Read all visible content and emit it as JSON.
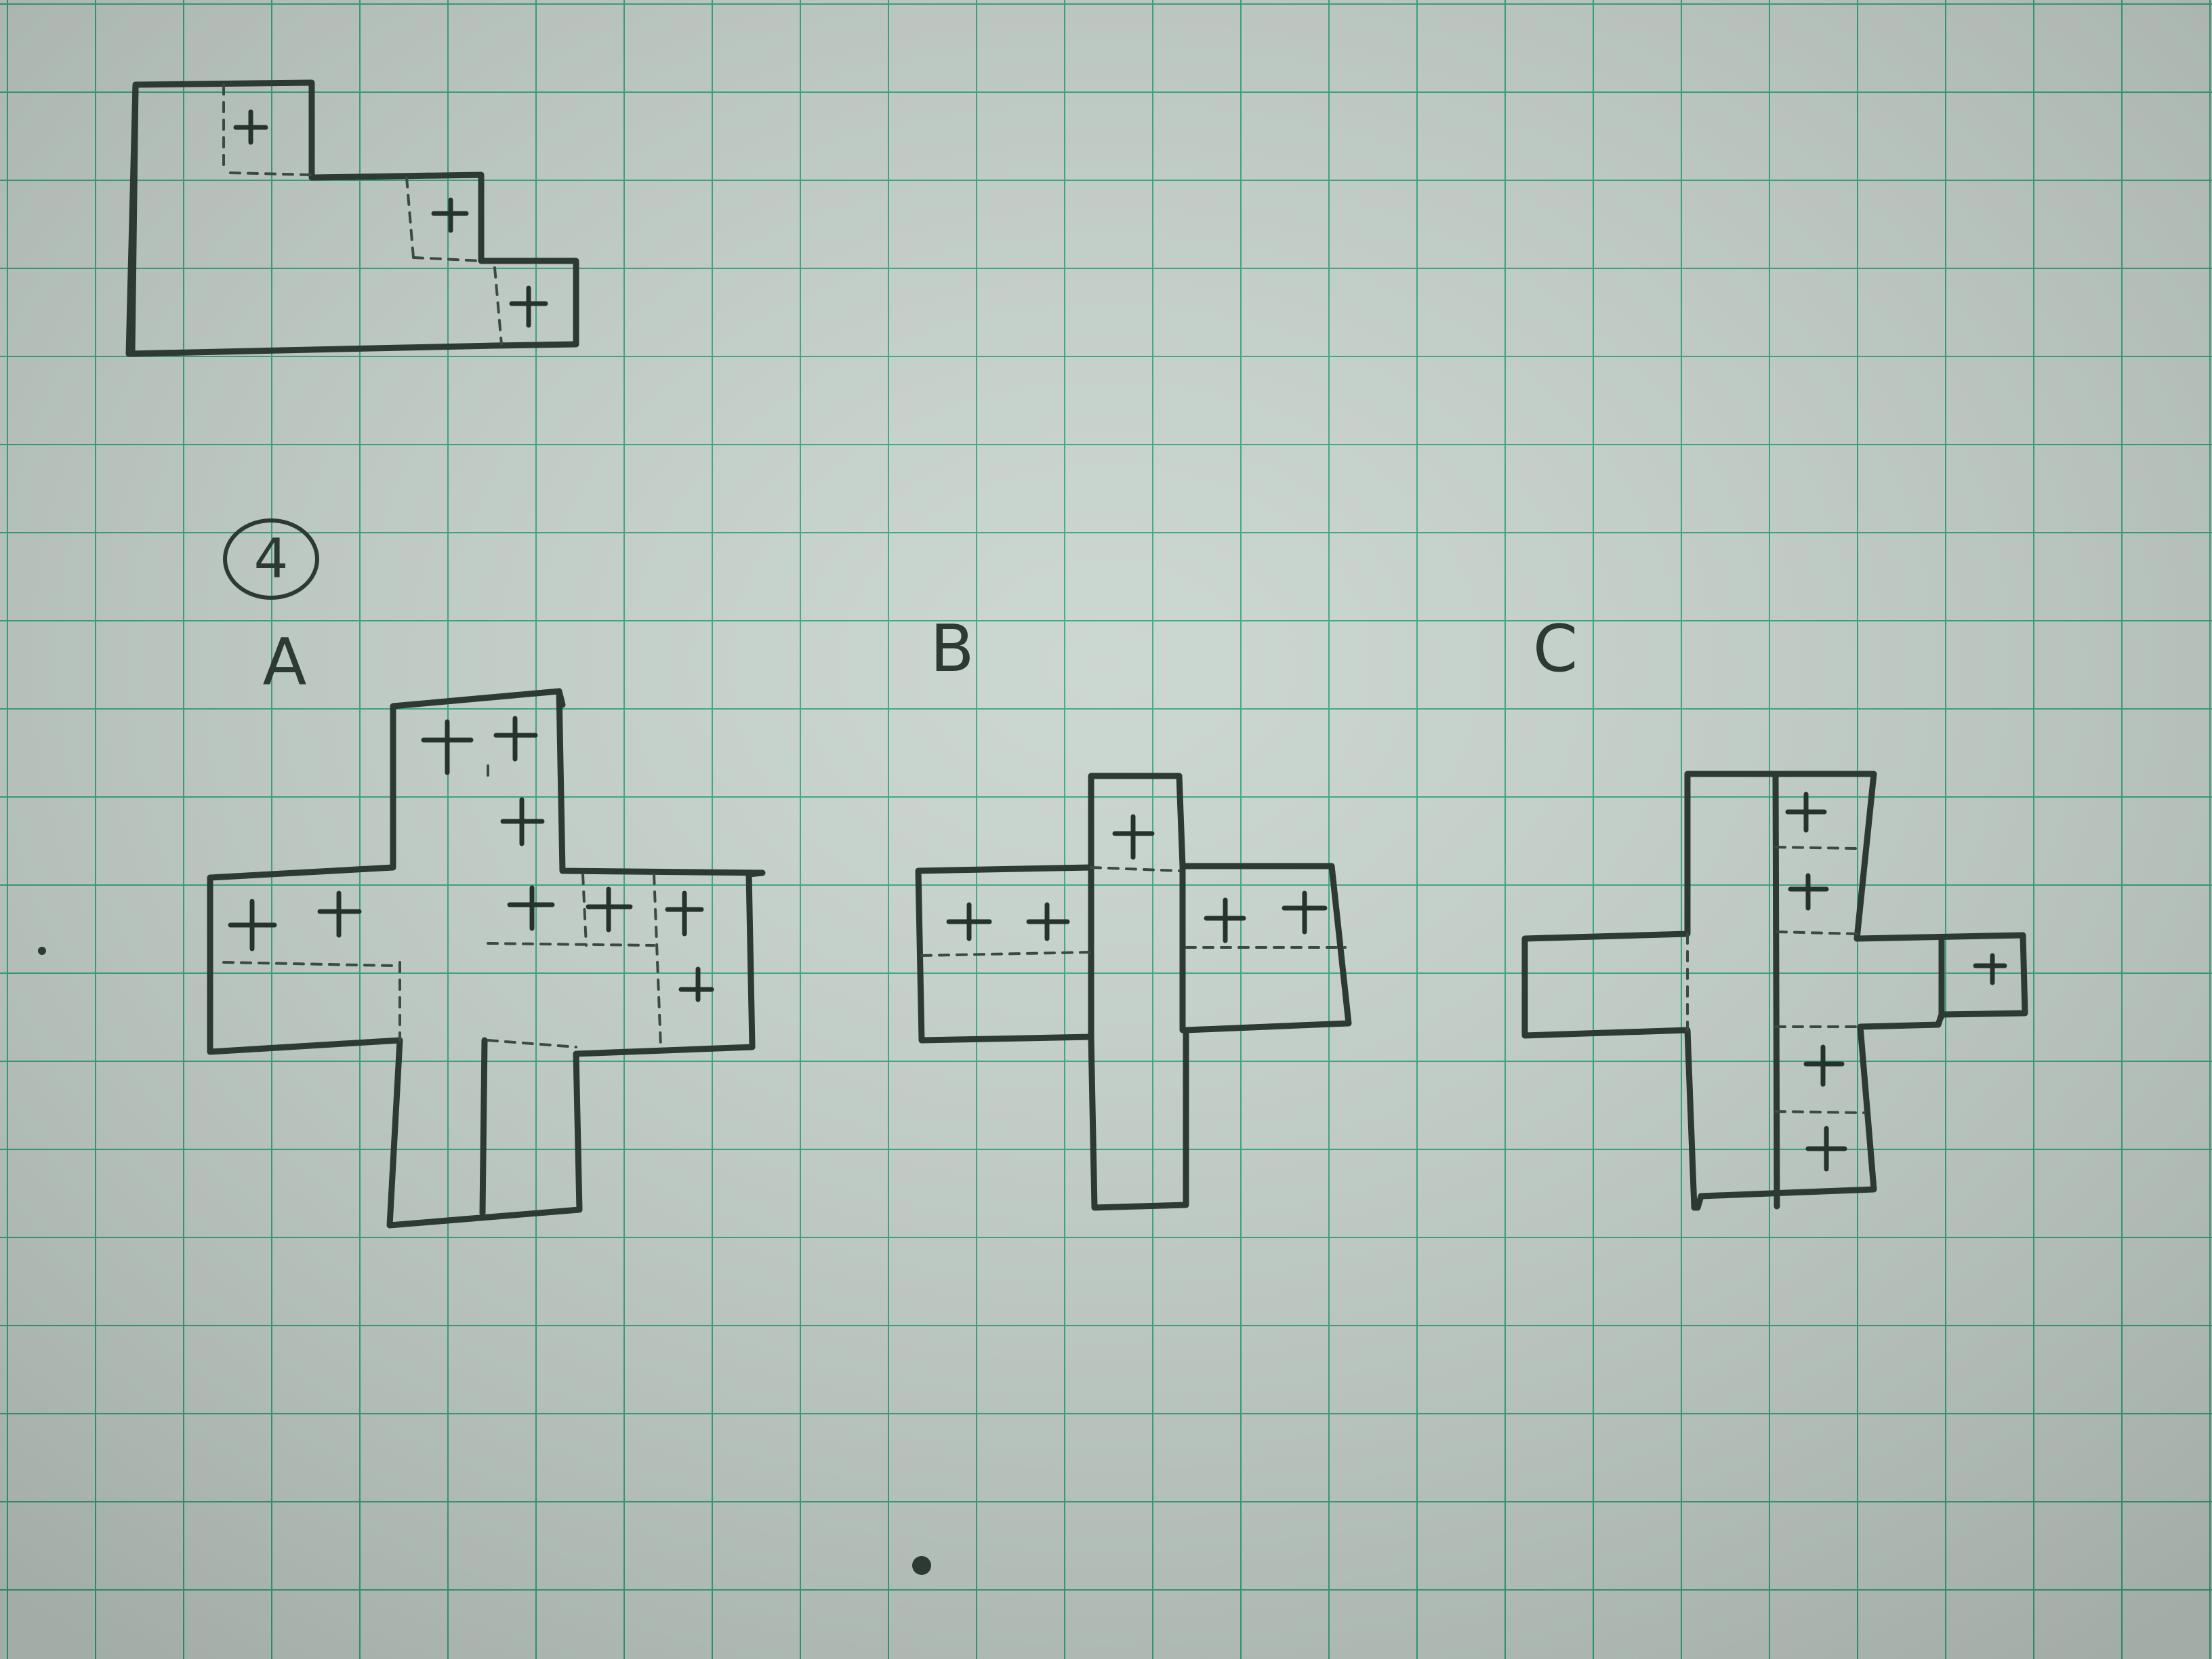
{
  "question_number": "4",
  "options": [
    {
      "label": "A"
    },
    {
      "label": "B"
    },
    {
      "label": "C"
    }
  ],
  "mark_symbol": "+",
  "colors": {
    "paper": "#c6d3cc",
    "grid": "#34a37a",
    "ink": "#2c3a31"
  }
}
